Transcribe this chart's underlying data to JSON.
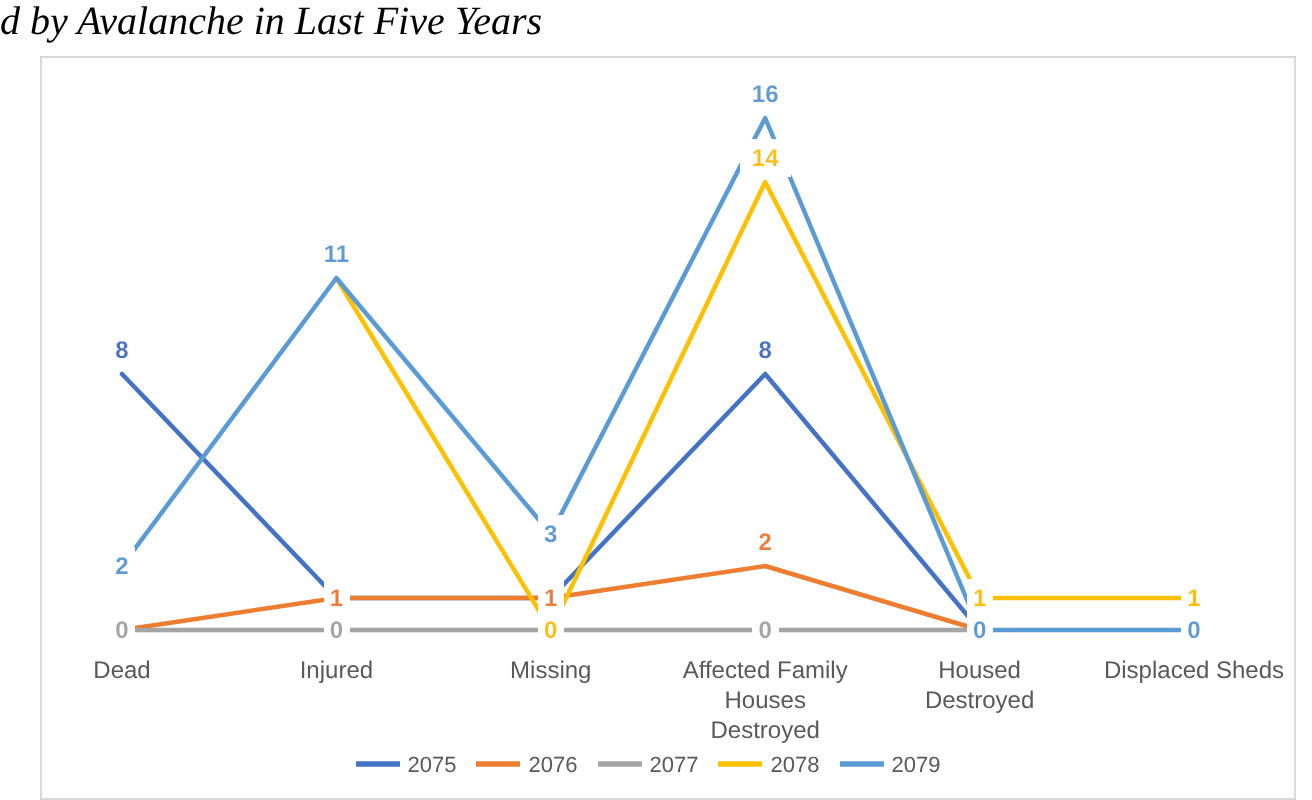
{
  "chart_data": {
    "type": "line",
    "title": "d by Avalanche in Last Five Years",
    "categories": [
      "Dead",
      "Injured",
      "Missing",
      "Affected Family Houses Destroyed",
      "Housed Destroyed",
      "Displaced Sheds"
    ],
    "series": [
      {
        "name": "2075",
        "color": "#4472c4",
        "values": [
          8,
          1,
          1,
          8,
          0,
          null
        ],
        "value_labels": [
          "8",
          null,
          null,
          "8",
          null,
          null
        ]
      },
      {
        "name": "2076",
        "color": "#ed7d31",
        "values": [
          0,
          1,
          1,
          2,
          0,
          null
        ],
        "value_labels": [
          null,
          "1",
          "1",
          "2",
          null,
          null
        ]
      },
      {
        "name": "2077",
        "color": "#a5a5a5",
        "values": [
          0,
          0,
          0,
          0,
          0,
          null
        ],
        "value_labels": [
          "0",
          "0",
          null,
          "0",
          null,
          null
        ]
      },
      {
        "name": "2078",
        "color": "#ffc000",
        "values": [
          null,
          11,
          0,
          14,
          1,
          1
        ],
        "value_labels": [
          null,
          null,
          "0",
          "14",
          "1",
          "1"
        ]
      },
      {
        "name": "2079",
        "color": "#5b9bd5",
        "values": [
          2,
          11,
          3,
          16,
          0,
          0
        ],
        "value_labels": [
          "2",
          "11",
          "3",
          "16",
          "0",
          "0"
        ]
      }
    ],
    "grid": false,
    "legend": "bottom",
    "line_style": "solid"
  }
}
